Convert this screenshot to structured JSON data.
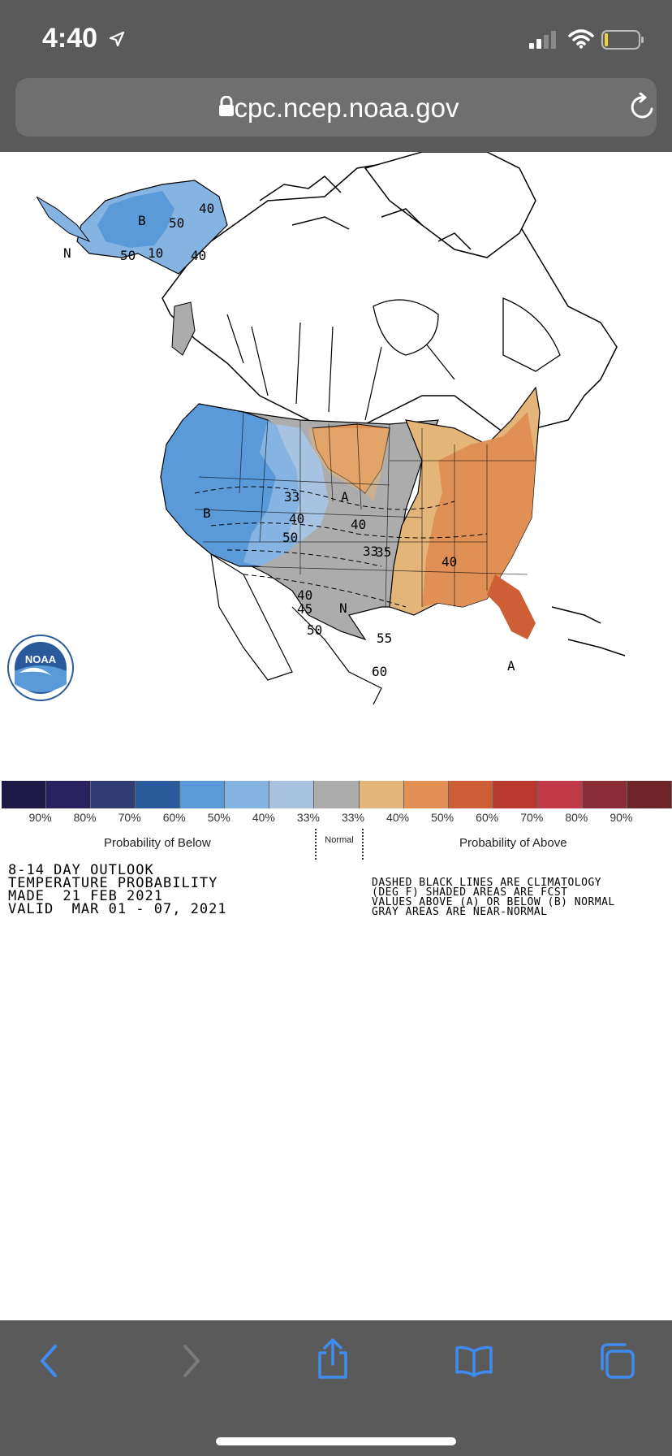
{
  "status_bar": {
    "time": "4:40"
  },
  "browser": {
    "url": "cpc.ncep.noaa.gov"
  },
  "map": {
    "logo_text": "NOAA",
    "title_lines": [
      "8-14 DAY OUTLOOK",
      "TEMPERATURE PROBABILITY",
      "MADE  21 FEB 2021",
      "VALID  MAR 01 - 07, 2021"
    ],
    "note_lines": [
      "DASHED BLACK LINES ARE CLIMATOLOGY",
      "(DEG F) SHADED AREAS ARE FCST",
      "VALUES ABOVE (A) OR BELOW (B) NORMAL",
      "GRAY AREAS ARE NEAR-NORMAL"
    ],
    "region_labels": {
      "alaska_b": "B",
      "alaska_n": "N",
      "west_b": "B",
      "plains_a": "A",
      "central_n": "N",
      "florida_a": "A"
    },
    "contour_labels": [
      "50",
      "50",
      "40",
      "10",
      "40",
      "33",
      "40",
      "50",
      "40",
      "33",
      "35",
      "40",
      "40",
      "45",
      "50",
      "55",
      "60"
    ]
  },
  "legend": {
    "colors": [
      "#1e1a48",
      "#2a2160",
      "#2f3d72",
      "#2a5a9c",
      "#5a9ad8",
      "#86b4e2",
      "#a8c2e2",
      "#acacac",
      "#e3b578",
      "#e19055",
      "#cd5e35",
      "#b83a2e",
      "#c03a48",
      "#8a2d36",
      "#6e2429"
    ],
    "labels": [
      "90%",
      "80%",
      "70%",
      "60%",
      "50%",
      "40%",
      "33%",
      "33%",
      "40%",
      "50%",
      "60%",
      "70%",
      "80%",
      "90%"
    ],
    "below_caption": "Probability of Below",
    "above_caption": "Probability of Above",
    "normal_caption": "Normal"
  },
  "toolbar": {
    "back": "back-icon",
    "forward": "forward-icon",
    "share": "share-icon",
    "bookmarks": "book-icon",
    "tabs": "tabs-icon"
  }
}
